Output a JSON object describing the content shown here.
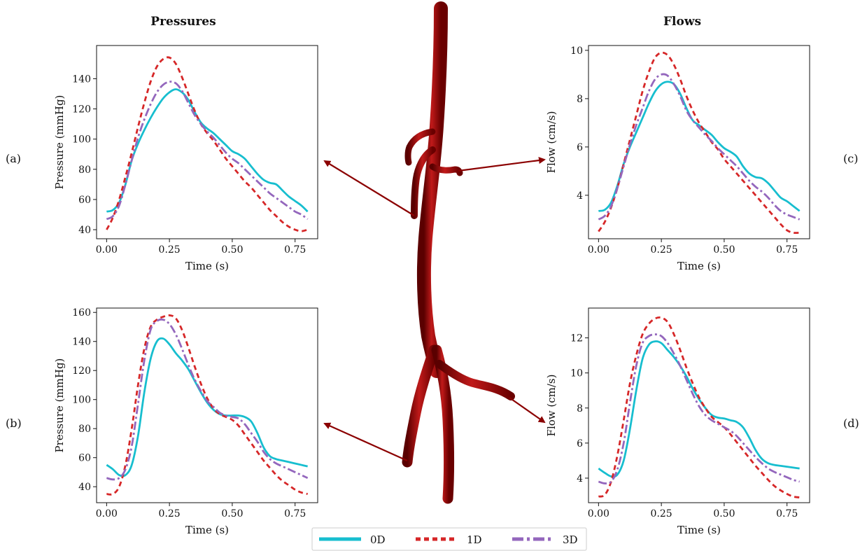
{
  "column_titles": {
    "left": "Pressures",
    "right": "Flows"
  },
  "panel_tags": {
    "a": "(a)",
    "b": "(b)",
    "c": "(c)",
    "d": "(d)"
  },
  "legend": {
    "entries": [
      {
        "label": "0D",
        "color": "#17becf",
        "dash": "solid"
      },
      {
        "label": "1D",
        "color": "#d62728",
        "dash": "dotted"
      },
      {
        "label": "3D",
        "color": "#9467bd",
        "dash": "dashdot"
      }
    ],
    "placement": "bottom-center"
  },
  "colors": {
    "vessel": "#8b0000",
    "arrow": "#8b0000"
  },
  "chart_data": [
    {
      "id": "a",
      "type": "line",
      "xlabel": "Time (s)",
      "ylabel": "Pressure (mmHg)",
      "xlim": [
        -0.04,
        0.84
      ],
      "ylim": [
        34,
        162
      ],
      "xticks": [
        0.0,
        0.25,
        0.5,
        0.75
      ],
      "xticklabels": [
        "0.00",
        "0.25",
        "0.50",
        "0.75"
      ],
      "yticks": [
        40,
        60,
        80,
        100,
        120,
        140
      ],
      "yticklabels": [
        "40",
        "60",
        "80",
        "100",
        "120",
        "140"
      ],
      "grid": false,
      "x": [
        0.0,
        0.025,
        0.05,
        0.075,
        0.1,
        0.125,
        0.15,
        0.175,
        0.2,
        0.225,
        0.25,
        0.275,
        0.3,
        0.325,
        0.35,
        0.375,
        0.4,
        0.425,
        0.45,
        0.475,
        0.5,
        0.525,
        0.55,
        0.575,
        0.6,
        0.625,
        0.65,
        0.675,
        0.7,
        0.725,
        0.75,
        0.775,
        0.8
      ],
      "series": [
        {
          "name": "0D",
          "values": [
            52,
            53,
            58,
            70,
            86,
            97,
            106,
            114,
            121,
            127,
            131,
            133,
            131,
            126,
            118,
            111,
            107,
            104,
            100,
            96,
            92,
            90,
            87,
            82,
            77,
            73,
            71,
            70,
            66,
            62,
            59,
            56,
            52
          ]
        },
        {
          "name": "1D",
          "values": [
            40,
            48,
            60,
            75,
            91,
            108,
            124,
            138,
            148,
            153,
            154,
            150,
            141,
            130,
            119,
            110,
            104,
            99,
            93,
            87,
            82,
            77,
            72,
            68,
            63,
            58,
            53,
            49,
            45,
            42,
            40,
            39,
            40
          ]
        },
        {
          "name": "3D",
          "values": [
            47,
            49,
            56,
            70,
            86,
            101,
            113,
            123,
            131,
            136,
            138,
            137,
            132,
            124,
            116,
            110,
            105,
            101,
            96,
            91,
            87,
            84,
            80,
            76,
            72,
            68,
            64,
            61,
            58,
            55,
            52,
            50,
            47
          ]
        }
      ]
    },
    {
      "id": "b",
      "type": "line",
      "xlabel": "Time (s)",
      "ylabel": "Pressure (mmHg)",
      "xlim": [
        -0.04,
        0.84
      ],
      "ylim": [
        29,
        163
      ],
      "xticks": [
        0.0,
        0.25,
        0.5,
        0.75
      ],
      "xticklabels": [
        "0.00",
        "0.25",
        "0.50",
        "0.75"
      ],
      "yticks": [
        40,
        60,
        80,
        100,
        120,
        140,
        160
      ],
      "yticklabels": [
        "40",
        "60",
        "80",
        "100",
        "120",
        "140",
        "160"
      ],
      "grid": false,
      "x": [
        0.0,
        0.025,
        0.05,
        0.075,
        0.1,
        0.125,
        0.15,
        0.175,
        0.2,
        0.225,
        0.25,
        0.275,
        0.3,
        0.325,
        0.35,
        0.375,
        0.4,
        0.425,
        0.45,
        0.475,
        0.5,
        0.525,
        0.55,
        0.575,
        0.6,
        0.625,
        0.65,
        0.675,
        0.7,
        0.725,
        0.75,
        0.775,
        0.8
      ],
      "series": [
        {
          "name": "0D",
          "values": [
            55,
            52,
            48,
            48,
            55,
            75,
            105,
            128,
            140,
            142,
            138,
            132,
            127,
            121,
            113,
            105,
            98,
            93,
            90,
            89,
            89,
            89,
            88,
            85,
            77,
            67,
            61,
            59,
            58,
            57,
            56,
            55,
            54
          ]
        },
        {
          "name": "1D",
          "values": [
            35,
            35,
            40,
            55,
            80,
            110,
            135,
            150,
            155,
            157,
            158,
            156,
            148,
            136,
            123,
            111,
            101,
            94,
            90,
            88,
            86,
            82,
            76,
            70,
            64,
            58,
            53,
            48,
            44,
            41,
            38,
            36,
            35
          ]
        },
        {
          "name": "3D",
          "values": [
            46,
            45,
            46,
            52,
            68,
            97,
            127,
            148,
            154,
            155,
            152,
            145,
            135,
            124,
            114,
            106,
            99,
            95,
            91,
            89,
            88,
            87,
            83,
            77,
            71,
            64,
            59,
            56,
            54,
            52,
            50,
            48,
            46
          ]
        }
      ]
    },
    {
      "id": "c",
      "type": "line",
      "xlabel": "Time (s)",
      "ylabel": "Flow (cm/s)",
      "xlim": [
        -0.04,
        0.84
      ],
      "ylim": [
        2.2,
        10.2
      ],
      "xticks": [
        0.0,
        0.25,
        0.5,
        0.75
      ],
      "xticklabels": [
        "0.00",
        "0.25",
        "0.50",
        "0.75"
      ],
      "yticks": [
        4,
        6,
        8,
        10
      ],
      "yticklabels": [
        "4",
        "6",
        "8",
        "10"
      ],
      "grid": false,
      "x": [
        0.0,
        0.025,
        0.05,
        0.075,
        0.1,
        0.125,
        0.15,
        0.175,
        0.2,
        0.225,
        0.25,
        0.275,
        0.3,
        0.325,
        0.35,
        0.375,
        0.4,
        0.425,
        0.45,
        0.475,
        0.5,
        0.525,
        0.55,
        0.575,
        0.6,
        0.625,
        0.65,
        0.675,
        0.7,
        0.725,
        0.75,
        0.775,
        0.8
      ],
      "series": [
        {
          "name": "0D",
          "values": [
            3.35,
            3.4,
            3.7,
            4.4,
            5.3,
            6.0,
            6.6,
            7.2,
            7.8,
            8.3,
            8.6,
            8.7,
            8.6,
            8.2,
            7.6,
            7.1,
            6.9,
            6.7,
            6.5,
            6.2,
            5.95,
            5.8,
            5.6,
            5.2,
            4.9,
            4.75,
            4.7,
            4.5,
            4.2,
            3.9,
            3.75,
            3.55,
            3.35
          ]
        },
        {
          "name": "1D",
          "values": [
            2.5,
            2.9,
            3.5,
            4.3,
            5.3,
            6.3,
            7.3,
            8.3,
            9.1,
            9.7,
            9.9,
            9.8,
            9.4,
            8.8,
            8.1,
            7.5,
            7.0,
            6.6,
            6.2,
            5.9,
            5.5,
            5.2,
            4.9,
            4.6,
            4.3,
            4.0,
            3.7,
            3.4,
            3.1,
            2.8,
            2.55,
            2.45,
            2.45
          ]
        },
        {
          "name": "3D",
          "values": [
            3.0,
            3.15,
            3.55,
            4.3,
            5.2,
            6.1,
            6.9,
            7.6,
            8.3,
            8.8,
            9.0,
            8.95,
            8.6,
            8.1,
            7.5,
            7.1,
            6.8,
            6.5,
            6.25,
            5.95,
            5.7,
            5.45,
            5.2,
            4.9,
            4.6,
            4.35,
            4.15,
            3.9,
            3.6,
            3.35,
            3.2,
            3.1,
            3.0
          ]
        }
      ]
    },
    {
      "id": "d",
      "type": "line",
      "xlabel": "Time (s)",
      "ylabel": "Flow (cm/s)",
      "xlim": [
        -0.04,
        0.84
      ],
      "ylim": [
        2.6,
        13.7
      ],
      "xticks": [
        0.0,
        0.25,
        0.5,
        0.75
      ],
      "xticklabels": [
        "0.00",
        "0.25",
        "0.50",
        "0.75"
      ],
      "yticks": [
        4,
        6,
        8,
        10,
        12
      ],
      "yticklabels": [
        "4",
        "6",
        "8",
        "10",
        "12"
      ],
      "grid": false,
      "x": [
        0.0,
        0.025,
        0.05,
        0.075,
        0.1,
        0.125,
        0.15,
        0.175,
        0.2,
        0.225,
        0.25,
        0.275,
        0.3,
        0.325,
        0.35,
        0.375,
        0.4,
        0.425,
        0.45,
        0.475,
        0.5,
        0.525,
        0.55,
        0.575,
        0.6,
        0.625,
        0.65,
        0.675,
        0.7,
        0.725,
        0.75,
        0.775,
        0.8
      ],
      "series": [
        {
          "name": "0D",
          "values": [
            4.55,
            4.3,
            4.1,
            4.2,
            5.0,
            6.8,
            9.0,
            10.8,
            11.6,
            11.8,
            11.7,
            11.3,
            10.9,
            10.4,
            9.8,
            9.1,
            8.5,
            8.0,
            7.6,
            7.45,
            7.4,
            7.3,
            7.2,
            6.9,
            6.3,
            5.6,
            5.1,
            4.85,
            4.75,
            4.7,
            4.65,
            4.6,
            4.55
          ]
        },
        {
          "name": "1D",
          "values": [
            2.95,
            3.05,
            3.8,
            5.3,
            7.3,
            9.4,
            11.0,
            12.2,
            12.8,
            13.1,
            13.15,
            12.9,
            12.2,
            11.3,
            10.3,
            9.4,
            8.6,
            8.0,
            7.5,
            7.2,
            6.9,
            6.5,
            6.05,
            5.6,
            5.15,
            4.7,
            4.3,
            3.9,
            3.55,
            3.3,
            3.1,
            2.95,
            2.9
          ]
        },
        {
          "name": "3D",
          "values": [
            3.8,
            3.7,
            3.8,
            4.5,
            6.0,
            8.3,
            10.4,
            11.7,
            12.1,
            12.2,
            12.1,
            11.7,
            11.1,
            10.4,
            9.6,
            8.8,
            8.1,
            7.6,
            7.3,
            7.1,
            6.9,
            6.7,
            6.4,
            6.0,
            5.6,
            5.2,
            4.85,
            4.55,
            4.35,
            4.2,
            4.05,
            3.9,
            3.8
          ]
        }
      ]
    }
  ]
}
